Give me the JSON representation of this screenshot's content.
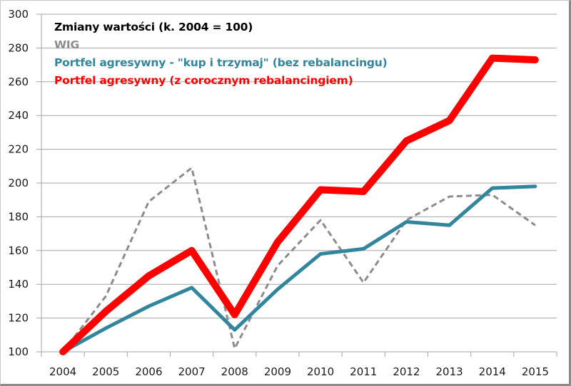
{
  "chart_data": {
    "type": "line",
    "title": "Zmiany wartości (k. 2004 = 100)",
    "xlabel": "",
    "ylabel": "",
    "categories": [
      "2004",
      "2005",
      "2006",
      "2007",
      "2008",
      "2009",
      "2010",
      "2011",
      "2012",
      "2013",
      "2014",
      "2015"
    ],
    "ylim": [
      100,
      300
    ],
    "yticks": [
      100,
      120,
      140,
      160,
      180,
      200,
      220,
      240,
      260,
      280,
      300
    ],
    "grid": true,
    "legend_placement": "top-left",
    "series": [
      {
        "name": "WIG",
        "color": "#8c8c8c",
        "style": "dashed",
        "values": [
          100,
          133,
          189,
          209,
          102,
          151,
          178,
          141,
          178,
          192,
          193,
          175
        ]
      },
      {
        "name": "Portfel agresywny - \"kup i trzymaj\" (bez rebalancingu)",
        "color": "#31859c",
        "style": "solid",
        "values": [
          100,
          114,
          127,
          138,
          113,
          137,
          158,
          161,
          177,
          175,
          197,
          198
        ]
      },
      {
        "name": "Portfel agresywny (z corocznym rebalancingiem)",
        "color": "#ff0000",
        "style": "solid-thick",
        "values": [
          100,
          124,
          145,
          160,
          122,
          165,
          196,
          195,
          225,
          237,
          274,
          273
        ]
      }
    ]
  }
}
